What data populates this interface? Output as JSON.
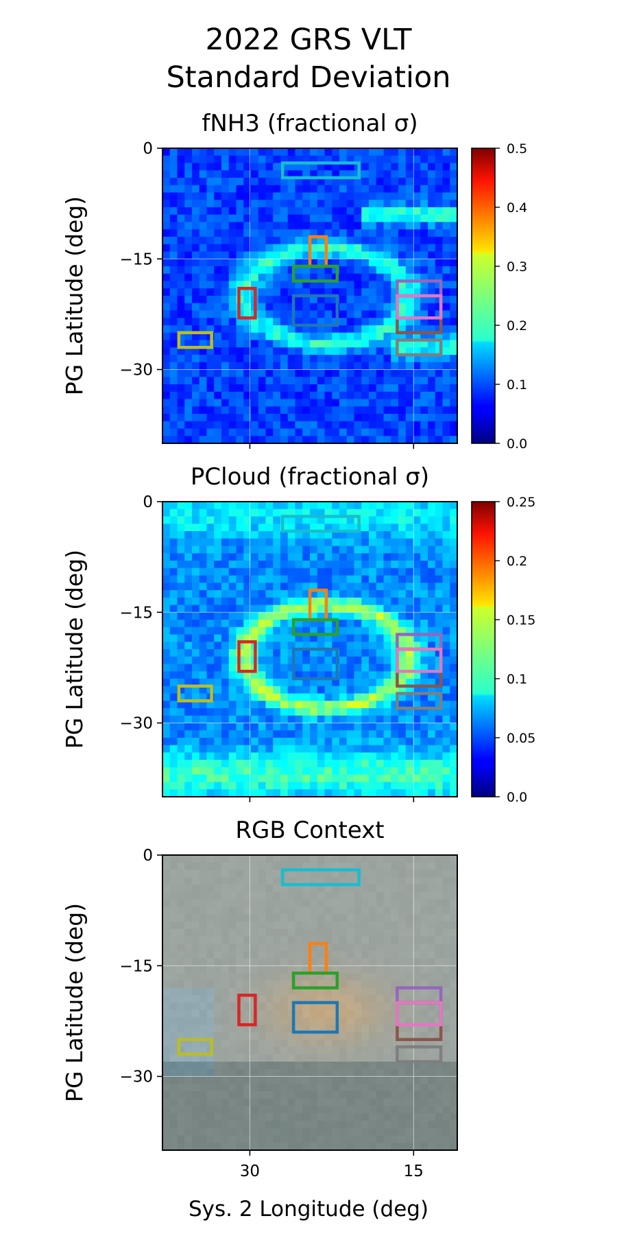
{
  "figure": {
    "title_lines": [
      "2022 GRS VLT",
      "Standard Deviation"
    ],
    "xlabel": "Sys. 2 Longitude (deg)"
  },
  "chart_data": [
    {
      "type": "heatmap",
      "title": "fNH3 (fractional σ)",
      "ylabel": "PG Latitude (deg)",
      "xlabel": "",
      "xlim": [
        38,
        11
      ],
      "ylim": [
        -40,
        0
      ],
      "yticks": [
        0,
        -15,
        -30
      ],
      "ytick_labels": [
        "0",
        "−15",
        "−30"
      ],
      "xticks": [
        30,
        15
      ],
      "xtick_labels": [],
      "grid": true,
      "colormap": "jet",
      "colorbar": {
        "ticks": [
          0.0,
          0.1,
          0.2,
          0.3,
          0.4,
          0.5
        ],
        "tick_labels": [
          "0.0",
          "0.1",
          "0.2",
          "0.3",
          "0.4",
          "0.5"
        ],
        "vmin": 0,
        "vmax": 0.5
      }
    },
    {
      "type": "heatmap",
      "title": "PCloud (fractional σ)",
      "ylabel": "PG Latitude (deg)",
      "xlabel": "",
      "xlim": [
        38,
        11
      ],
      "ylim": [
        -40,
        0
      ],
      "yticks": [
        0,
        -15,
        -30
      ],
      "ytick_labels": [
        "0",
        "−15",
        "−30"
      ],
      "xticks": [
        30,
        15
      ],
      "xtick_labels": [],
      "grid": true,
      "colormap": "jet",
      "colorbar": {
        "ticks": [
          0.0,
          0.05,
          0.1,
          0.15,
          0.2,
          0.25
        ],
        "tick_labels": [
          "0.0",
          "0.05",
          "0.1",
          "0.15",
          "0.2",
          "0.25"
        ],
        "vmin": 0,
        "vmax": 0.25
      }
    },
    {
      "type": "heatmap",
      "title": "RGB Context",
      "ylabel": "PG Latitude (deg)",
      "xlabel": "Sys. 2 Longitude (deg)",
      "xlim": [
        38,
        11
      ],
      "ylim": [
        -40,
        0
      ],
      "yticks": [
        0,
        -15,
        -30
      ],
      "ytick_labels": [
        "0",
        "−15",
        "−30"
      ],
      "xticks": [
        30,
        15
      ],
      "xtick_labels": [
        "30",
        "15"
      ],
      "grid": true
    }
  ],
  "regions": [
    {
      "color": "#1f77b4",
      "lon": [
        22,
        26
      ],
      "lat": [
        -24,
        -20
      ]
    },
    {
      "color": "#ff7f0e",
      "lon": [
        23,
        24.5
      ],
      "lat": [
        -16,
        -12
      ]
    },
    {
      "color": "#2ca02c",
      "lon": [
        22,
        26
      ],
      "lat": [
        -18,
        -16
      ]
    },
    {
      "color": "#d62728",
      "lon": [
        29.5,
        31
      ],
      "lat": [
        -23,
        -19
      ]
    },
    {
      "color": "#9467bd",
      "lon": [
        12.5,
        16.5
      ],
      "lat": [
        -20,
        -18
      ]
    },
    {
      "color": "#8c564b",
      "lon": [
        12.5,
        16.5
      ],
      "lat": [
        -25,
        -20
      ]
    },
    {
      "color": "#e377c2",
      "lon": [
        12.5,
        16.5
      ],
      "lat": [
        -23,
        -20
      ]
    },
    {
      "color": "#7f7f7f",
      "lon": [
        12.5,
        16.5
      ],
      "lat": [
        -28,
        -26
      ]
    },
    {
      "color": "#bcbd22",
      "lon": [
        33.5,
        36.5
      ],
      "lat": [
        -27,
        -25
      ]
    },
    {
      "color": "#17becf",
      "lon": [
        20,
        27
      ],
      "lat": [
        -4,
        -2
      ]
    }
  ]
}
